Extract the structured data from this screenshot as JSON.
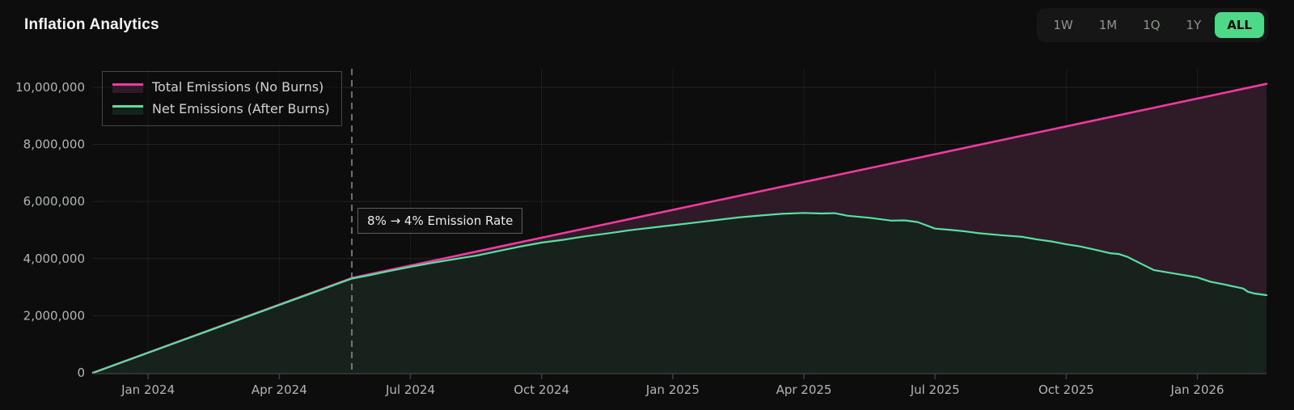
{
  "header": {
    "title": "Inflation Analytics",
    "ranges": [
      {
        "label": "1W",
        "active": false
      },
      {
        "label": "1M",
        "active": false
      },
      {
        "label": "1Q",
        "active": false
      },
      {
        "label": "1Y",
        "active": false
      },
      {
        "label": "ALL",
        "active": true
      }
    ],
    "active_range_bg": "#4ed989",
    "active_range_text": "#0c0d0c"
  },
  "chart_data": {
    "type": "area",
    "title": "Inflation Analytics",
    "x_unit": "months since Jan 2024",
    "x_domain": [
      -1.26,
      25.58
    ],
    "ylim": [
      0,
      10650000
    ],
    "grid": true,
    "legend_position": "top-left",
    "x_ticks": [
      {
        "m": 0,
        "label": "Jan 2024"
      },
      {
        "m": 3,
        "label": "Apr 2024"
      },
      {
        "m": 6,
        "label": "Jul 2024"
      },
      {
        "m": 9,
        "label": "Oct 2024"
      },
      {
        "m": 12,
        "label": "Jan 2025"
      },
      {
        "m": 15,
        "label": "Apr 2025"
      },
      {
        "m": 18,
        "label": "Jul 2025"
      },
      {
        "m": 21,
        "label": "Oct 2025"
      },
      {
        "m": 24,
        "label": "Jan 2026"
      }
    ],
    "y_ticks": [
      {
        "v": 0,
        "label": "0"
      },
      {
        "v": 2000000,
        "label": "2,000,000"
      },
      {
        "v": 4000000,
        "label": "4,000,000"
      },
      {
        "v": 6000000,
        "label": "6,000,000"
      },
      {
        "v": 8000000,
        "label": "8,000,000"
      },
      {
        "v": 10000000,
        "label": "10,000,000"
      }
    ],
    "annotation": {
      "label": "8% → 4% Emission Rate",
      "m": 4.66,
      "line_color": "#9aa09b",
      "line_style": "dashed"
    },
    "series": [
      {
        "name": "Total Emissions (No Burns)",
        "color": "#ef3aa0",
        "fill": "#2f1b28",
        "points": [
          [
            -1.26,
            0
          ],
          [
            4.66,
            3320000
          ],
          [
            25.58,
            10120000
          ]
        ]
      },
      {
        "name": "Net Emissions (After Burns)",
        "color": "#57e0a0",
        "fill": "#17221c",
        "points": [
          [
            -1.26,
            0
          ],
          [
            4.66,
            3300000
          ],
          [
            5,
            3400000
          ],
          [
            5.5,
            3560000
          ],
          [
            6,
            3710000
          ],
          [
            6.5,
            3850000
          ],
          [
            7,
            3980000
          ],
          [
            7.5,
            4100000
          ],
          [
            8,
            4260000
          ],
          [
            8.5,
            4420000
          ],
          [
            9,
            4560000
          ],
          [
            9.5,
            4660000
          ],
          [
            10,
            4780000
          ],
          [
            10.5,
            4880000
          ],
          [
            11,
            4990000
          ],
          [
            11.5,
            5080000
          ],
          [
            12,
            5170000
          ],
          [
            12.5,
            5260000
          ],
          [
            13,
            5350000
          ],
          [
            13.5,
            5440000
          ],
          [
            14,
            5510000
          ],
          [
            14.5,
            5570000
          ],
          [
            15,
            5600000
          ],
          [
            15.4,
            5580000
          ],
          [
            15.7,
            5590000
          ],
          [
            16,
            5500000
          ],
          [
            16.5,
            5430000
          ],
          [
            17,
            5330000
          ],
          [
            17.3,
            5340000
          ],
          [
            17.6,
            5280000
          ],
          [
            18,
            5050000
          ],
          [
            18.4,
            5000000
          ],
          [
            18.7,
            4950000
          ],
          [
            19,
            4890000
          ],
          [
            19.5,
            4820000
          ],
          [
            20,
            4760000
          ],
          [
            20.3,
            4680000
          ],
          [
            20.7,
            4590000
          ],
          [
            21,
            4500000
          ],
          [
            21.3,
            4430000
          ],
          [
            21.6,
            4330000
          ],
          [
            22,
            4190000
          ],
          [
            22.2,
            4160000
          ],
          [
            22.4,
            4060000
          ],
          [
            22.7,
            3830000
          ],
          [
            23,
            3600000
          ],
          [
            23.3,
            3520000
          ],
          [
            23.7,
            3420000
          ],
          [
            24,
            3340000
          ],
          [
            24.3,
            3190000
          ],
          [
            24.6,
            3100000
          ],
          [
            24.9,
            3000000
          ],
          [
            25.05,
            2950000
          ],
          [
            25.15,
            2840000
          ],
          [
            25.3,
            2780000
          ],
          [
            25.58,
            2720000
          ]
        ]
      }
    ]
  },
  "colors": {
    "background": "#0c0d0c",
    "grid": "#262b28",
    "axis_line": "#3c403d",
    "tick_text": "#b2b6b2",
    "legend_text": "#cfd2cf",
    "legend_border": "#454946"
  }
}
